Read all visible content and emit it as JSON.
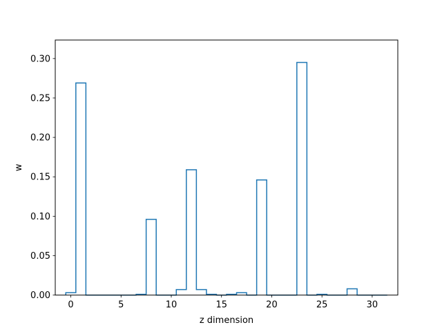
{
  "chart_data": {
    "type": "bar",
    "style": "step-histogram",
    "title": "",
    "xlabel": "z dimension",
    "ylabel": "w",
    "x": [
      0,
      1,
      2,
      3,
      4,
      5,
      6,
      7,
      8,
      9,
      10,
      11,
      12,
      13,
      14,
      15,
      16,
      17,
      18,
      19,
      20,
      21,
      22,
      23,
      24,
      25,
      26,
      27,
      28,
      29,
      30,
      31
    ],
    "values": [
      0.003,
      0.269,
      0.0,
      0.0,
      0.0,
      0.0,
      0.0,
      0.001,
      0.096,
      0.0,
      0.0,
      0.007,
      0.159,
      0.007,
      0.001,
      0.0,
      0.001,
      0.003,
      0.0,
      0.146,
      0.0,
      0.0,
      0.0,
      0.295,
      0.0,
      0.001,
      0.0,
      0.0,
      0.008,
      0.0,
      0.0,
      0.0
    ],
    "xlim": [
      -1.55,
      32.55
    ],
    "ylim": [
      0,
      0.3235
    ],
    "xticks": [
      0,
      5,
      10,
      15,
      20,
      25,
      30
    ],
    "xtick_labels": [
      "0",
      "5",
      "10",
      "15",
      "20",
      "25",
      "30"
    ],
    "yticks": [
      0.0,
      0.05,
      0.1,
      0.15,
      0.2,
      0.25,
      0.3
    ],
    "ytick_labels": [
      "0.00",
      "0.05",
      "0.10",
      "0.15",
      "0.20",
      "0.25",
      "0.30"
    ],
    "grid": false,
    "series_color": "#1f77b4"
  }
}
